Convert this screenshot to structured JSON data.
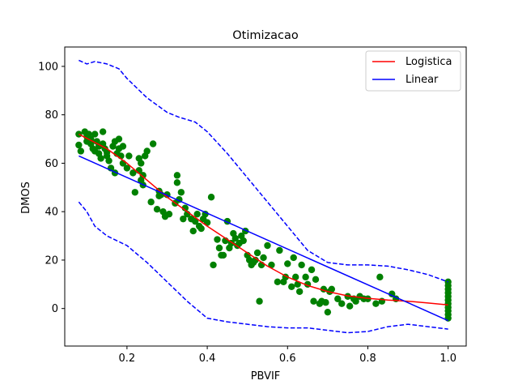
{
  "chart_data": {
    "type": "scatter",
    "title": "Otimizacao",
    "xlabel": "PBVIF",
    "ylabel": "DMOS",
    "xlim": [
      0.045,
      1.045
    ],
    "ylim": [
      -15.5,
      108
    ],
    "xticks": [
      "0.2",
      "0.4",
      "0.6",
      "0.8",
      "1.0"
    ],
    "xtick_values": [
      0.2,
      0.4,
      0.6,
      0.8,
      1.0
    ],
    "yticks": [
      "0",
      "20",
      "40",
      "60",
      "80",
      "100"
    ],
    "ytick_values": [
      0,
      20,
      40,
      60,
      80,
      100
    ],
    "grid": false,
    "legend_placement": "top-right",
    "colors": {
      "points": "#008000",
      "logistic": "#ff0000",
      "linear": "#0000ff",
      "bounds": "#0000ff"
    },
    "series": [
      {
        "name": "Logistica",
        "kind": "line",
        "color": "#ff0000",
        "x": [
          0.08,
          0.15,
          0.2,
          0.25,
          0.3,
          0.35,
          0.4,
          0.45,
          0.5,
          0.55,
          0.6,
          0.65,
          0.7,
          0.75,
          0.8,
          0.85,
          0.9,
          0.95,
          1.0
        ],
        "y": [
          72,
          66,
          60,
          53,
          46,
          40,
          34,
          28.5,
          23,
          17.5,
          13,
          9.5,
          7,
          5.2,
          4.2,
          3.5,
          3.0,
          2.3,
          1.5
        ]
      },
      {
        "name": "Linear",
        "kind": "line",
        "color": "#0000ff",
        "x": [
          0.08,
          1.0
        ],
        "y": [
          63,
          -5
        ]
      },
      {
        "kind": "dashed",
        "color": "#0000ff",
        "x": [
          0.08,
          0.1,
          0.12,
          0.15,
          0.18,
          0.2,
          0.25,
          0.3,
          0.33,
          0.37,
          0.4,
          0.45,
          0.5,
          0.55,
          0.6,
          0.65,
          0.7,
          0.75,
          0.8,
          0.85,
          0.9,
          0.95,
          1.0
        ],
        "y": [
          102.5,
          101,
          102,
          101,
          99,
          95,
          87,
          81,
          79,
          77,
          73,
          64,
          54,
          44,
          34,
          24,
          19,
          18,
          18,
          17.5,
          16,
          14,
          11
        ]
      },
      {
        "kind": "dashed",
        "color": "#0000ff",
        "x": [
          0.08,
          0.1,
          0.12,
          0.15,
          0.2,
          0.25,
          0.3,
          0.35,
          0.4,
          0.45,
          0.5,
          0.55,
          0.6,
          0.65,
          0.7,
          0.75,
          0.8,
          0.85,
          0.9,
          0.95,
          1.0
        ],
        "y": [
          44,
          40,
          34,
          30,
          26,
          19,
          11,
          3,
          -4,
          -5.5,
          -6.5,
          -7.5,
          -8,
          -8,
          -9,
          -10,
          -9.5,
          -7.5,
          -6.5,
          -7.5,
          -8.5
        ]
      },
      {
        "kind": "scatter",
        "color": "#008000",
        "points": [
          [
            0.08,
            72
          ],
          [
            0.08,
            67.5
          ],
          [
            0.085,
            65
          ],
          [
            0.095,
            73
          ],
          [
            0.1,
            71
          ],
          [
            0.1,
            69
          ],
          [
            0.105,
            72
          ],
          [
            0.11,
            70
          ],
          [
            0.11,
            68
          ],
          [
            0.115,
            66
          ],
          [
            0.12,
            72
          ],
          [
            0.12,
            65
          ],
          [
            0.125,
            69
          ],
          [
            0.13,
            67
          ],
          [
            0.13,
            64
          ],
          [
            0.135,
            62
          ],
          [
            0.14,
            68
          ],
          [
            0.14,
            73
          ],
          [
            0.145,
            66
          ],
          [
            0.15,
            63
          ],
          [
            0.15,
            64.5
          ],
          [
            0.155,
            61
          ],
          [
            0.16,
            58
          ],
          [
            0.165,
            67
          ],
          [
            0.17,
            56
          ],
          [
            0.17,
            69
          ],
          [
            0.175,
            64
          ],
          [
            0.18,
            70
          ],
          [
            0.18,
            66
          ],
          [
            0.185,
            63
          ],
          [
            0.19,
            67
          ],
          [
            0.19,
            60
          ],
          [
            0.2,
            58
          ],
          [
            0.205,
            63
          ],
          [
            0.215,
            56
          ],
          [
            0.22,
            48
          ],
          [
            0.23,
            62
          ],
          [
            0.23,
            57
          ],
          [
            0.235,
            60
          ],
          [
            0.235,
            53
          ],
          [
            0.24,
            55
          ],
          [
            0.24,
            51
          ],
          [
            0.245,
            63
          ],
          [
            0.25,
            65
          ],
          [
            0.26,
            44
          ],
          [
            0.265,
            68
          ],
          [
            0.275,
            41
          ],
          [
            0.28,
            46.5
          ],
          [
            0.28,
            48.5
          ],
          [
            0.285,
            47
          ],
          [
            0.29,
            40
          ],
          [
            0.295,
            38
          ],
          [
            0.3,
            47
          ],
          [
            0.305,
            39
          ],
          [
            0.32,
            43.5
          ],
          [
            0.325,
            55
          ],
          [
            0.325,
            52
          ],
          [
            0.33,
            45
          ],
          [
            0.335,
            48
          ],
          [
            0.34,
            37
          ],
          [
            0.345,
            41.5
          ],
          [
            0.35,
            39
          ],
          [
            0.36,
            37
          ],
          [
            0.365,
            32
          ],
          [
            0.37,
            36
          ],
          [
            0.375,
            39
          ],
          [
            0.38,
            34
          ],
          [
            0.385,
            33
          ],
          [
            0.39,
            37
          ],
          [
            0.395,
            39
          ],
          [
            0.4,
            35.5
          ],
          [
            0.41,
            46
          ],
          [
            0.415,
            18
          ],
          [
            0.425,
            28.5
          ],
          [
            0.43,
            25
          ],
          [
            0.435,
            22
          ],
          [
            0.44,
            22
          ],
          [
            0.445,
            28
          ],
          [
            0.45,
            36
          ],
          [
            0.455,
            25
          ],
          [
            0.46,
            27
          ],
          [
            0.465,
            31
          ],
          [
            0.47,
            29
          ],
          [
            0.475,
            26
          ],
          [
            0.48,
            27
          ],
          [
            0.485,
            30
          ],
          [
            0.49,
            28
          ],
          [
            0.495,
            32
          ],
          [
            0.5,
            22
          ],
          [
            0.505,
            20
          ],
          [
            0.51,
            18
          ],
          [
            0.515,
            19
          ],
          [
            0.52,
            20
          ],
          [
            0.525,
            23
          ],
          [
            0.53,
            3
          ],
          [
            0.535,
            18
          ],
          [
            0.54,
            21
          ],
          [
            0.55,
            26
          ],
          [
            0.56,
            18
          ],
          [
            0.575,
            11
          ],
          [
            0.58,
            24
          ],
          [
            0.59,
            11
          ],
          [
            0.595,
            13
          ],
          [
            0.6,
            18.5
          ],
          [
            0.61,
            9
          ],
          [
            0.615,
            21
          ],
          [
            0.62,
            13
          ],
          [
            0.625,
            10
          ],
          [
            0.63,
            7
          ],
          [
            0.635,
            18
          ],
          [
            0.645,
            13
          ],
          [
            0.65,
            10
          ],
          [
            0.66,
            16
          ],
          [
            0.665,
            3
          ],
          [
            0.67,
            12
          ],
          [
            0.68,
            2
          ],
          [
            0.685,
            3
          ],
          [
            0.69,
            8
          ],
          [
            0.695,
            2.5
          ],
          [
            0.7,
            -1.5
          ],
          [
            0.705,
            7
          ],
          [
            0.71,
            8
          ],
          [
            0.725,
            4
          ],
          [
            0.735,
            2
          ],
          [
            0.75,
            5
          ],
          [
            0.755,
            1
          ],
          [
            0.765,
            4
          ],
          [
            0.77,
            3
          ],
          [
            0.78,
            5
          ],
          [
            0.79,
            4
          ],
          [
            0.8,
            4
          ],
          [
            0.82,
            2
          ],
          [
            0.83,
            13
          ],
          [
            0.835,
            3
          ],
          [
            0.86,
            6
          ],
          [
            0.87,
            4
          ],
          [
            1.0,
            11
          ],
          [
            1.0,
            9.5
          ],
          [
            1.0,
            8
          ],
          [
            1.0,
            6.5
          ],
          [
            1.0,
            5
          ],
          [
            1.0,
            3.5
          ],
          [
            1.0,
            2
          ],
          [
            1.0,
            0.5
          ],
          [
            1.0,
            -1
          ],
          [
            1.0,
            -2.5
          ],
          [
            1.0,
            -4
          ]
        ]
      }
    ]
  }
}
